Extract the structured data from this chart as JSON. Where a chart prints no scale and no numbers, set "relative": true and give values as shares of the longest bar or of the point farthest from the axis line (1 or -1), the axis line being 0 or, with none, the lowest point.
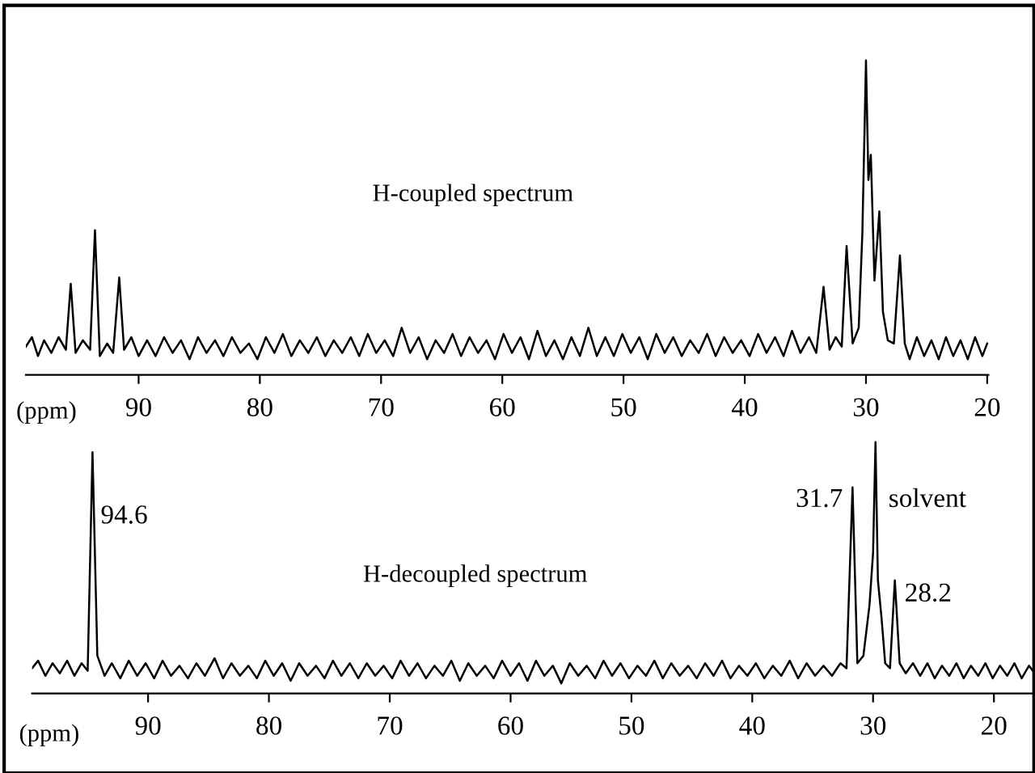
{
  "chart_data": [
    {
      "type": "line",
      "relative": true,
      "xlabel": "(ppm)",
      "xlim": [
        99.3,
        19.9
      ],
      "xticks": [
        90,
        80,
        70,
        60,
        50,
        40,
        30,
        20
      ],
      "tick_labels": "x",
      "annotations": [
        "H-coupled spectrum"
      ],
      "series": [
        {
          "color": "#000000",
          "x": [
            99.3,
            98.8,
            98.3,
            97.8,
            97.2,
            96.6,
            96.0,
            95.6,
            95.2,
            94.6,
            94.0,
            93.6,
            93.2,
            92.6,
            92.1,
            91.6,
            91.2,
            90.6,
            90.0,
            89.3,
            88.6,
            87.9,
            87.2,
            86.5,
            85.8,
            85.1,
            84.4,
            83.7,
            83.0,
            82.3,
            81.6,
            80.9,
            80.2,
            79.5,
            78.8,
            78.1,
            77.4,
            76.7,
            76.0,
            75.3,
            74.6,
            73.9,
            73.2,
            72.5,
            71.8,
            71.1,
            70.4,
            69.7,
            69.0,
            68.3,
            67.6,
            66.9,
            66.2,
            65.5,
            64.8,
            64.1,
            63.4,
            62.7,
            62.0,
            61.3,
            60.6,
            59.9,
            59.2,
            58.5,
            57.8,
            57.1,
            56.4,
            55.7,
            55.0,
            54.3,
            53.6,
            52.9,
            52.2,
            51.5,
            50.8,
            50.1,
            49.4,
            48.7,
            48.0,
            47.3,
            46.6,
            45.9,
            45.2,
            44.5,
            43.8,
            43.1,
            42.4,
            41.7,
            41.0,
            40.3,
            39.6,
            38.9,
            38.2,
            37.5,
            36.8,
            36.1,
            35.4,
            34.7,
            34.1,
            33.5,
            33.0,
            32.5,
            32.0,
            31.6,
            31.1,
            30.6,
            30.3,
            30.0,
            29.8,
            29.6,
            29.3,
            28.9,
            28.6,
            28.2,
            27.7,
            27.2,
            26.8,
            26.4,
            25.8,
            25.2,
            24.6,
            24.0,
            23.4,
            22.8,
            22.2,
            21.6,
            21.0,
            20.4,
            20.0
          ],
          "values": [
            0.09,
            0.12,
            0.06,
            0.11,
            0.07,
            0.12,
            0.08,
            0.29,
            0.07,
            0.11,
            0.08,
            0.46,
            0.06,
            0.1,
            0.07,
            0.31,
            0.08,
            0.12,
            0.06,
            0.11,
            0.06,
            0.12,
            0.07,
            0.11,
            0.05,
            0.12,
            0.07,
            0.11,
            0.06,
            0.12,
            0.07,
            0.1,
            0.05,
            0.12,
            0.07,
            0.13,
            0.06,
            0.11,
            0.07,
            0.12,
            0.06,
            0.11,
            0.07,
            0.12,
            0.06,
            0.13,
            0.07,
            0.11,
            0.06,
            0.15,
            0.07,
            0.12,
            0.05,
            0.11,
            0.07,
            0.13,
            0.06,
            0.12,
            0.07,
            0.11,
            0.05,
            0.13,
            0.07,
            0.12,
            0.05,
            0.14,
            0.06,
            0.11,
            0.05,
            0.12,
            0.06,
            0.15,
            0.06,
            0.12,
            0.06,
            0.13,
            0.07,
            0.12,
            0.05,
            0.13,
            0.07,
            0.12,
            0.06,
            0.11,
            0.07,
            0.13,
            0.06,
            0.12,
            0.07,
            0.11,
            0.06,
            0.13,
            0.07,
            0.12,
            0.06,
            0.14,
            0.07,
            0.12,
            0.07,
            0.28,
            0.08,
            0.12,
            0.09,
            0.41,
            0.1,
            0.15,
            0.45,
            1.0,
            0.62,
            0.7,
            0.3,
            0.52,
            0.2,
            0.11,
            0.1,
            0.38,
            0.1,
            0.05,
            0.12,
            0.06,
            0.11,
            0.05,
            0.12,
            0.06,
            0.11,
            0.05,
            0.12,
            0.06,
            0.1
          ]
        }
      ]
    },
    {
      "type": "line",
      "relative": true,
      "xlabel": "(ppm)",
      "xlim": [
        99.6,
        16.6
      ],
      "xticks": [
        90,
        80,
        70,
        60,
        50,
        40,
        30,
        20
      ],
      "tick_labels": "x",
      "annotations": [
        "H-decoupled spectrum",
        {
          "text": "94.6",
          "x": 94.6,
          "y": 0.96
        },
        {
          "text": "31.7",
          "x": 31.7,
          "y": 0.82
        },
        {
          "text": "solvent",
          "x": 29.8,
          "y": 1.0
        },
        {
          "text": "28.2",
          "x": 28.2,
          "y": 0.45
        }
      ],
      "series": [
        {
          "color": "#000000",
          "x": [
            99.6,
            99.1,
            98.5,
            97.9,
            97.3,
            96.7,
            96.1,
            95.5,
            95.0,
            94.6,
            94.2,
            93.6,
            93.0,
            92.3,
            91.6,
            90.9,
            90.2,
            89.5,
            88.8,
            88.1,
            87.4,
            86.7,
            86.0,
            85.3,
            84.5,
            83.8,
            83.1,
            82.4,
            81.7,
            81.0,
            80.3,
            79.6,
            78.9,
            78.2,
            77.5,
            76.8,
            76.1,
            75.4,
            74.7,
            74.0,
            73.3,
            72.6,
            71.9,
            71.2,
            70.5,
            69.8,
            69.1,
            68.4,
            67.7,
            67.0,
            66.3,
            65.6,
            64.9,
            64.2,
            63.5,
            62.8,
            62.1,
            61.4,
            60.7,
            60.0,
            59.3,
            58.6,
            57.9,
            57.2,
            56.5,
            55.8,
            55.1,
            54.4,
            53.7,
            53.0,
            52.3,
            51.6,
            50.9,
            50.2,
            49.5,
            48.8,
            48.1,
            47.4,
            46.7,
            46.0,
            45.3,
            44.6,
            43.9,
            43.2,
            42.5,
            41.8,
            41.1,
            40.4,
            39.7,
            39.0,
            38.3,
            37.6,
            36.9,
            36.2,
            35.5,
            34.8,
            34.1,
            33.4,
            32.7,
            32.2,
            31.7,
            31.3,
            30.8,
            30.3,
            30.0,
            29.8,
            29.6,
            29.3,
            29.0,
            28.6,
            28.2,
            27.8,
            27.3,
            26.7,
            26.1,
            25.5,
            24.9,
            24.3,
            23.7,
            23.1,
            22.5,
            21.9,
            21.3,
            20.7,
            20.1,
            19.5,
            18.9,
            18.3,
            17.7,
            17.1,
            16.6
          ],
          "values": [
            0.1,
            0.13,
            0.07,
            0.12,
            0.08,
            0.13,
            0.07,
            0.12,
            0.09,
            0.96,
            0.15,
            0.07,
            0.12,
            0.06,
            0.13,
            0.07,
            0.12,
            0.06,
            0.13,
            0.07,
            0.11,
            0.06,
            0.12,
            0.07,
            0.14,
            0.06,
            0.12,
            0.07,
            0.11,
            0.06,
            0.13,
            0.07,
            0.12,
            0.05,
            0.12,
            0.07,
            0.11,
            0.06,
            0.13,
            0.07,
            0.12,
            0.06,
            0.12,
            0.07,
            0.11,
            0.06,
            0.13,
            0.07,
            0.12,
            0.06,
            0.11,
            0.07,
            0.13,
            0.05,
            0.12,
            0.07,
            0.11,
            0.06,
            0.13,
            0.07,
            0.12,
            0.05,
            0.13,
            0.07,
            0.11,
            0.04,
            0.12,
            0.07,
            0.11,
            0.06,
            0.13,
            0.07,
            0.12,
            0.06,
            0.11,
            0.07,
            0.13,
            0.06,
            0.12,
            0.07,
            0.11,
            0.06,
            0.12,
            0.07,
            0.13,
            0.06,
            0.11,
            0.07,
            0.12,
            0.06,
            0.11,
            0.07,
            0.13,
            0.06,
            0.12,
            0.07,
            0.11,
            0.07,
            0.12,
            0.1,
            0.82,
            0.12,
            0.15,
            0.35,
            0.56,
            1.0,
            0.45,
            0.3,
            0.12,
            0.1,
            0.45,
            0.12,
            0.08,
            0.12,
            0.07,
            0.12,
            0.06,
            0.11,
            0.07,
            0.12,
            0.06,
            0.11,
            0.07,
            0.12,
            0.06,
            0.11,
            0.07,
            0.12,
            0.06,
            0.11,
            0.08
          ]
        }
      ]
    }
  ]
}
